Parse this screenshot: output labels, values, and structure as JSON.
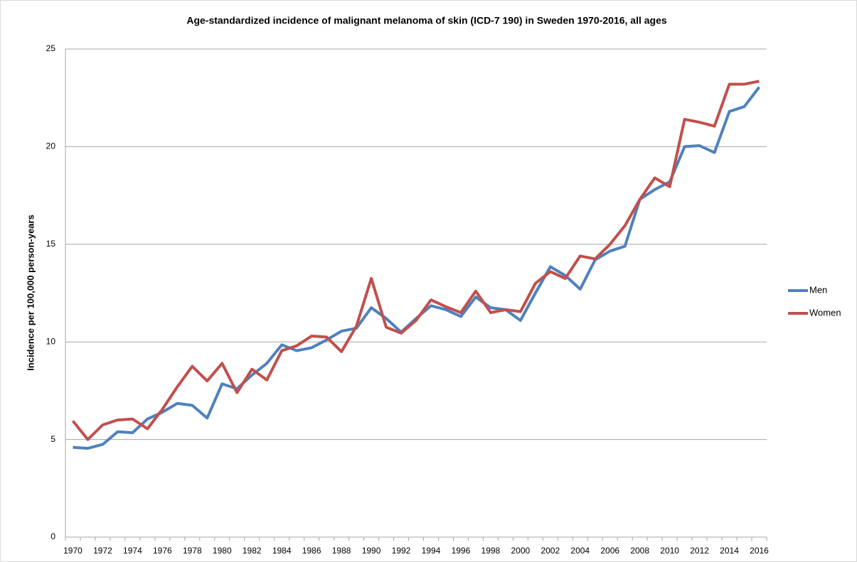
{
  "chart_data": {
    "type": "line",
    "title": "Age-standardized incidence of malignant melanoma of skin (ICD-7 190) in Sweden 1970-2016, all ages",
    "y_label": "Incidence per 100,000 person-years",
    "categories": [
      "1970",
      null,
      "1972",
      null,
      "1974",
      null,
      "1976",
      null,
      "1978",
      null,
      "1980",
      null,
      "1982",
      null,
      "1984",
      null,
      "1986",
      null,
      "1988",
      null,
      "1990",
      null,
      "1992",
      null,
      "1994",
      null,
      "1996",
      null,
      "1998",
      null,
      "2000",
      null,
      "2002",
      null,
      "2004",
      null,
      "2006",
      null,
      "2008",
      null,
      "2010",
      null,
      "2012",
      null,
      "2014",
      null,
      "2016"
    ],
    "series": [
      {
        "name": "Men",
        "color": "#4f81bd",
        "values": [
          4.6,
          4.55,
          4.75,
          5.4,
          5.35,
          6.05,
          6.4,
          6.85,
          6.75,
          6.1,
          7.85,
          7.6,
          8.3,
          8.9,
          9.85,
          9.55,
          9.7,
          10.1,
          10.55,
          10.7,
          11.75,
          11.2,
          10.5,
          11.2,
          11.85,
          11.65,
          11.3,
          12.3,
          11.75,
          11.65,
          11.1,
          12.5,
          13.85,
          13.4,
          12.7,
          14.2,
          14.65,
          14.9,
          17.3,
          17.8,
          18.2,
          20.0,
          20.05,
          19.7,
          21.8,
          22.05,
          23.05
        ]
      },
      {
        "name": "Women",
        "color": "#c0504d",
        "values": [
          5.95,
          5.0,
          5.75,
          6.0,
          6.05,
          5.55,
          6.55,
          7.7,
          8.75,
          8.0,
          8.9,
          7.4,
          8.6,
          8.05,
          9.55,
          9.8,
          10.3,
          10.25,
          9.5,
          10.8,
          13.25,
          10.75,
          10.45,
          11.1,
          12.15,
          11.8,
          11.5,
          12.6,
          11.5,
          11.65,
          11.55,
          13.0,
          13.6,
          13.25,
          14.4,
          14.25,
          15.0,
          15.95,
          17.3,
          18.4,
          17.95,
          21.4,
          21.25,
          21.05,
          23.2,
          23.2,
          23.35
        ]
      }
    ],
    "ylim": [
      0,
      25
    ],
    "yticks": [
      0,
      5,
      10,
      15,
      20,
      25
    ],
    "grid": true,
    "legend": "right"
  }
}
